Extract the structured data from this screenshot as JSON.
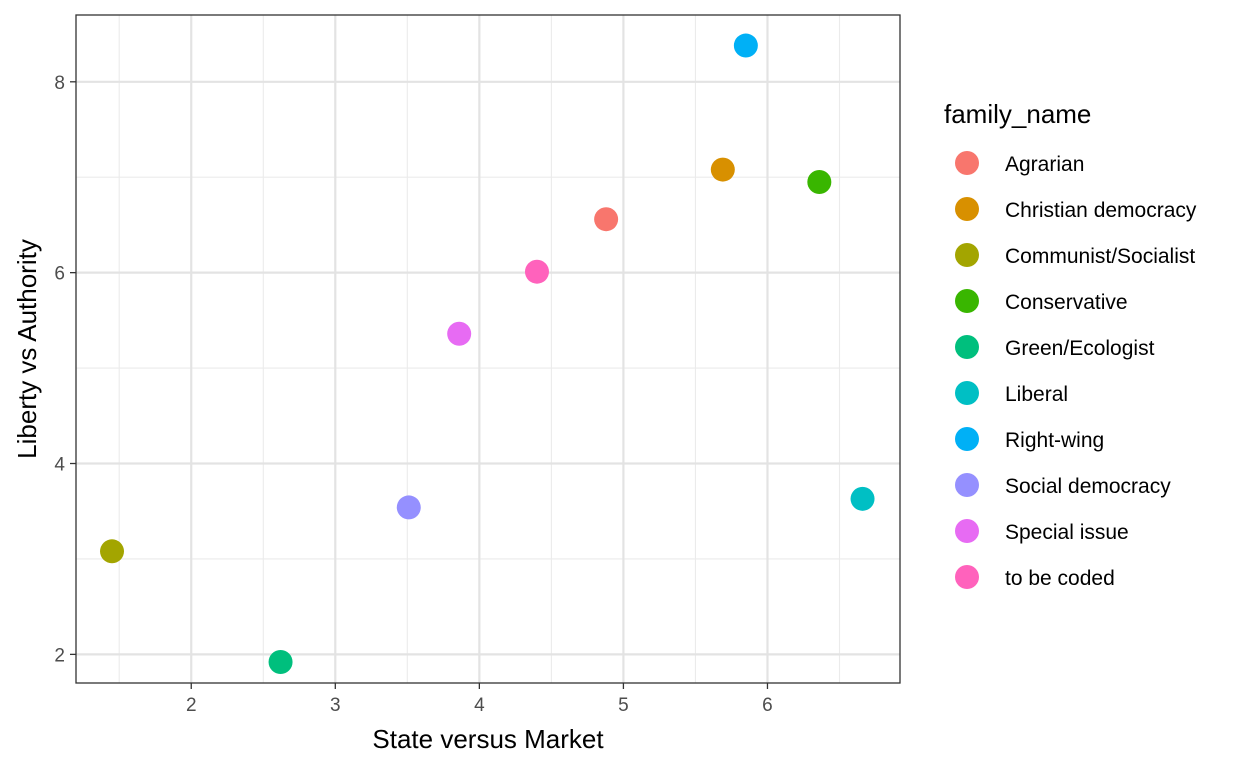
{
  "chart_data": {
    "type": "scatter",
    "xlabel": "State versus Market",
    "ylabel": "Liberty vs Authority",
    "xlim": [
      1.2,
      6.92
    ],
    "ylim": [
      1.7,
      8.7
    ],
    "x_ticks": [
      2,
      3,
      4,
      5,
      6
    ],
    "y_ticks": [
      2,
      4,
      6,
      8
    ],
    "grid": true,
    "legend": {
      "title": "family_name",
      "position": "right"
    },
    "points": [
      {
        "family": "Agrarian",
        "x": 4.88,
        "y": 6.56
      },
      {
        "family": "Christian democracy",
        "x": 5.69,
        "y": 7.08
      },
      {
        "family": "Communist/Socialist",
        "x": 1.45,
        "y": 3.08
      },
      {
        "family": "Conservative",
        "x": 6.36,
        "y": 6.95
      },
      {
        "family": "Green/Ecologist",
        "x": 2.62,
        "y": 1.92
      },
      {
        "family": "Liberal",
        "x": 6.66,
        "y": 3.63
      },
      {
        "family": "Right-wing",
        "x": 5.85,
        "y": 8.38
      },
      {
        "family": "Social democracy",
        "x": 3.51,
        "y": 3.54
      },
      {
        "family": "Special issue",
        "x": 3.86,
        "y": 5.36
      },
      {
        "family": "to be coded",
        "x": 4.4,
        "y": 6.01
      }
    ],
    "series": [
      {
        "name": "Agrarian",
        "color": "#F8766D"
      },
      {
        "name": "Christian democracy",
        "color": "#D89000"
      },
      {
        "name": "Communist/Socialist",
        "color": "#A3A500"
      },
      {
        "name": "Conservative",
        "color": "#39B600"
      },
      {
        "name": "Green/Ecologist",
        "color": "#00BF7D"
      },
      {
        "name": "Liberal",
        "color": "#00BFC4"
      },
      {
        "name": "Right-wing",
        "color": "#00B0F6"
      },
      {
        "name": "Social democracy",
        "color": "#9590FF"
      },
      {
        "name": "Special issue",
        "color": "#E76BF3"
      },
      {
        "name": "to be coded",
        "color": "#FF62BC"
      }
    ]
  }
}
